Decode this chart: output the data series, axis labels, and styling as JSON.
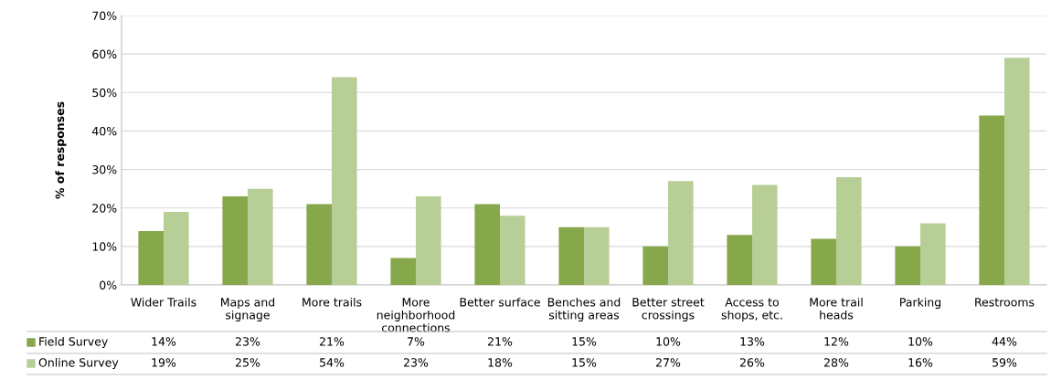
{
  "chart_data": {
    "type": "bar",
    "ylabel": "% of responses",
    "categories": [
      "Wider Trails",
      "Maps and\nsignage",
      "More trails",
      "More\nneighborhood\nconnections",
      "Better surface",
      "Benches and\nsitting areas",
      "Better street\ncrossings",
      "Access to\nshops, etc.",
      "More trail\nheads",
      "Parking",
      "Restrooms"
    ],
    "series": [
      {
        "name": "Field Survey",
        "color": "#87a74b",
        "values": [
          14,
          23,
          21,
          7,
          21,
          15,
          10,
          13,
          12,
          10,
          44
        ],
        "value_labels": [
          "14%",
          "23%",
          "21%",
          "7%",
          "21%",
          "15%",
          "10%",
          "13%",
          "12%",
          "10%",
          "44%"
        ]
      },
      {
        "name": "Online Survey",
        "color": "#b7cf96",
        "values": [
          19,
          25,
          54,
          23,
          18,
          15,
          27,
          26,
          28,
          16,
          59
        ],
        "value_labels": [
          "19%",
          "25%",
          "54%",
          "23%",
          "18%",
          "15%",
          "27%",
          "26%",
          "28%",
          "16%",
          "59%"
        ]
      }
    ],
    "ylim": [
      0,
      70
    ],
    "yticks": [
      {
        "value": 0,
        "label": "0%"
      },
      {
        "value": 10,
        "label": "10%"
      },
      {
        "value": 20,
        "label": "20%"
      },
      {
        "value": 30,
        "label": "30%"
      },
      {
        "value": 40,
        "label": "40%"
      },
      {
        "value": 50,
        "label": "50%"
      },
      {
        "value": 60,
        "label": "60%"
      },
      {
        "value": 70,
        "label": "70%"
      }
    ],
    "grid": "y",
    "legend": "bottom"
  }
}
